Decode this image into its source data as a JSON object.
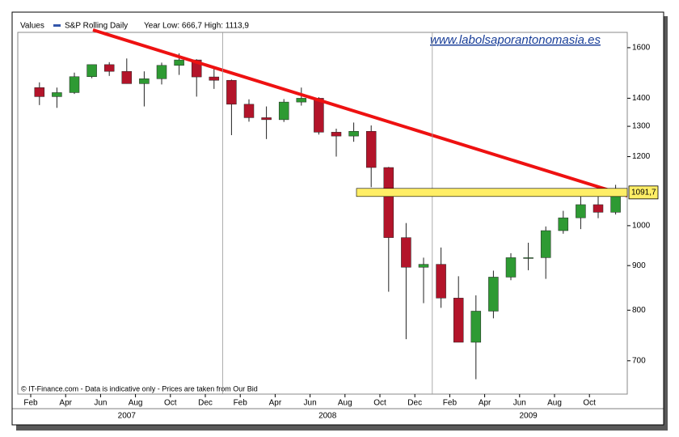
{
  "chart_data": {
    "type": "candlestick",
    "legend_label": "Values",
    "series_name": "S&P Rolling Daily",
    "stats": "Year Low: 666,7 High: 1113,9",
    "watermark": "www.labolsaporantonomasia.es",
    "footer": "© IT-Finance.com - Data is indicative only - Prices are taken from Our Bid",
    "x": [
      "2007-02",
      "2007-03",
      "2007-04",
      "2007-05",
      "2007-06",
      "2007-07",
      "2007-08",
      "2007-09",
      "2007-10",
      "2007-11",
      "2007-12",
      "2008-01",
      "2008-02",
      "2008-03",
      "2008-04",
      "2008-05",
      "2008-06",
      "2008-07",
      "2008-08",
      "2008-09",
      "2008-10",
      "2008-11",
      "2008-12",
      "2009-01",
      "2009-02",
      "2009-03",
      "2009-04",
      "2009-05",
      "2009-06",
      "2009-07",
      "2009-08",
      "2009-09",
      "2009-10",
      "2009-11"
    ],
    "open": [
      1440,
      1406,
      1421,
      1482,
      1530,
      1503,
      1455,
      1474,
      1527,
      1549,
      1481,
      1468,
      1378,
      1330,
      1323,
      1386,
      1400,
      1280,
      1267,
      1283,
      1166,
      969,
      896,
      903,
      826,
      735,
      798,
      873,
      919,
      919,
      987,
      1021,
      1057,
      1036
    ],
    "high": [
      1460,
      1440,
      1498,
      1530,
      1540,
      1555,
      1503,
      1538,
      1576,
      1552,
      1523,
      1471,
      1396,
      1370,
      1397,
      1440,
      1404,
      1292,
      1313,
      1303,
      1168,
      1007,
      919,
      944,
      875,
      832,
      888,
      930,
      956,
      998,
      1040,
      1080,
      1101,
      1113.9
    ],
    "low": [
      1375,
      1365,
      1416,
      1476,
      1485,
      1455,
      1370,
      1452,
      1489,
      1406,
      1435,
      1270,
      1316,
      1257,
      1315,
      1373,
      1272,
      1200,
      1248,
      1107,
      840,
      741,
      815,
      805,
      735,
      666.7,
      783,
      866,
      889,
      869,
      979,
      991,
      1020,
      1030
    ],
    "close": [
      1406,
      1421,
      1482,
      1530,
      1503,
      1455,
      1474,
      1527,
      1549,
      1481,
      1468,
      1378,
      1330,
      1323,
      1386,
      1400,
      1280,
      1267,
      1283,
      1166,
      969,
      896,
      903,
      826,
      735,
      798,
      873,
      919,
      919,
      987,
      1021,
      1057,
      1036,
      1096
    ],
    "up_color": "#2e9a33",
    "down_color": "#b3142a",
    "legend_color": "#3355aa",
    "log_y": true,
    "ylim": [
      641,
      1666
    ],
    "yticks": [
      700,
      800,
      900,
      1000,
      1200,
      1300,
      1400,
      1600
    ],
    "xticks": [
      {
        "value": "2007-02",
        "label": "Feb"
      },
      {
        "value": "2007-04",
        "label": "Apr"
      },
      {
        "value": "2007-06",
        "label": "Jun"
      },
      {
        "value": "2007-08",
        "label": "Aug"
      },
      {
        "value": "2007-10",
        "label": "Oct"
      },
      {
        "value": "2007-12",
        "label": "Dec"
      },
      {
        "value": "2008-02",
        "label": "Feb"
      },
      {
        "value": "2008-04",
        "label": "Apr"
      },
      {
        "value": "2008-06",
        "label": "Jun"
      },
      {
        "value": "2008-08",
        "label": "Aug"
      },
      {
        "value": "2008-10",
        "label": "Oct"
      },
      {
        "value": "2008-12",
        "label": "Dec"
      },
      {
        "value": "2009-02",
        "label": "Feb"
      },
      {
        "value": "2009-04",
        "label": "Apr"
      },
      {
        "value": "2009-06",
        "label": "Jun"
      },
      {
        "value": "2009-08",
        "label": "Aug"
      },
      {
        "value": "2009-10",
        "label": "Oct"
      }
    ],
    "years": [
      "2007",
      "2008",
      "2009"
    ],
    "level": {
      "value": 1091.7,
      "label": "1091,7",
      "color": "#ffee66"
    }
  }
}
